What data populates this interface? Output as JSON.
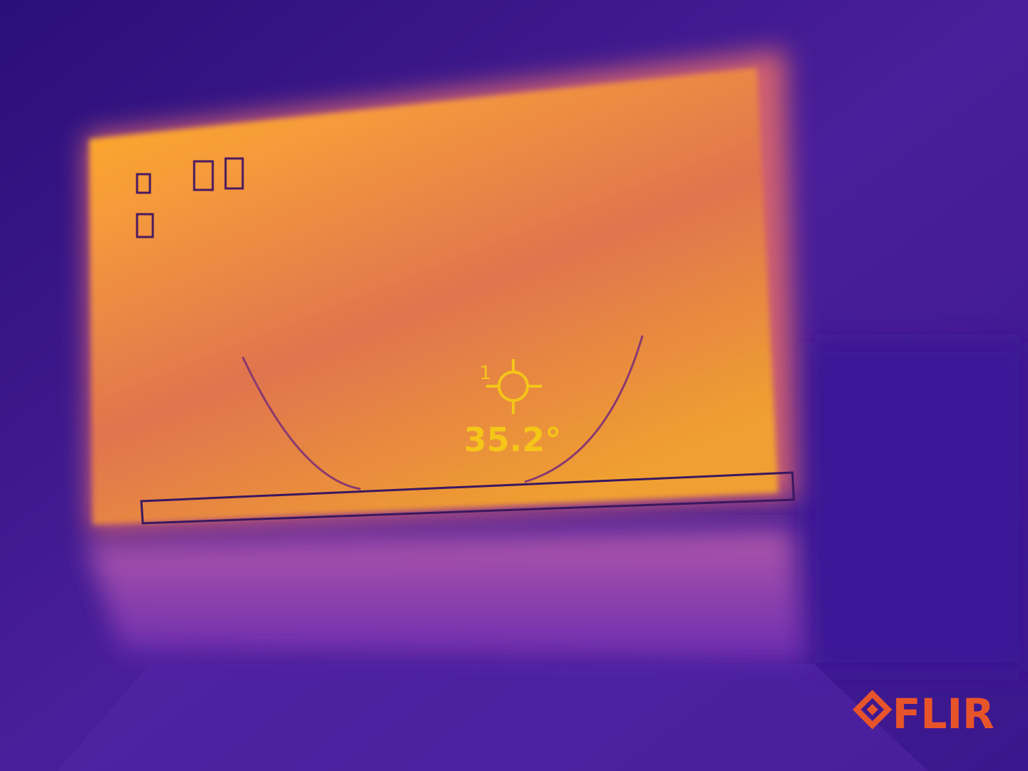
{
  "spot": {
    "label": "1",
    "temperature": "35.2°"
  },
  "logo": {
    "text": "FLIR"
  }
}
